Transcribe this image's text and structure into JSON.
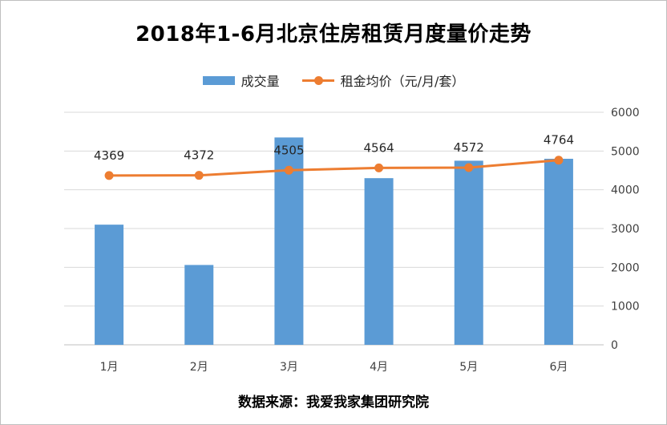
{
  "chart_data": {
    "type": "bar",
    "title": "2018年1-6月北京住房租赁月度量价走势",
    "categories": [
      "1月",
      "2月",
      "3月",
      "4月",
      "5月",
      "6月"
    ],
    "series": [
      {
        "name": "成交量",
        "type": "bar",
        "axis": "right",
        "color": "#5b9bd5",
        "values": [
          3100,
          2060,
          5350,
          4300,
          4750,
          4800
        ]
      },
      {
        "name": "租金均价（元/月/套）",
        "type": "line",
        "axis": "right",
        "color": "#ed7d31",
        "values": [
          4369,
          4372,
          4505,
          4564,
          4572,
          4764
        ]
      }
    ],
    "yaxis_ticks": [
      "0",
      "1000",
      "2000",
      "3000",
      "4000",
      "5000",
      "6000"
    ],
    "ylim": [
      0,
      6000
    ],
    "grid": "horizontal",
    "legend_position": "top",
    "source": "数据来源：我爱我家集团研究院"
  }
}
